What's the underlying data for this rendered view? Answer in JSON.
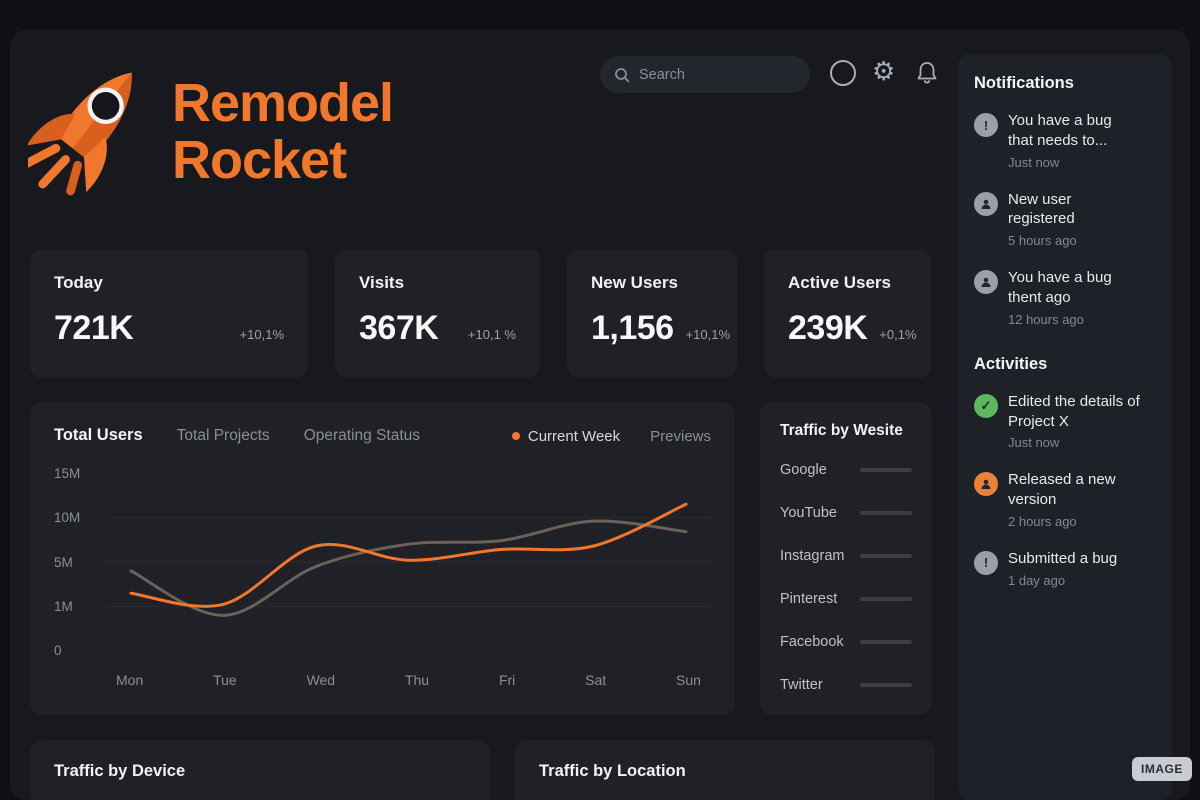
{
  "brand": {
    "line1": "Remodel",
    "line2": "Rocket"
  },
  "header": {
    "search_placeholder": "Search",
    "settings_glyph": "⚙"
  },
  "stats": [
    {
      "label": "Today",
      "value": "721K",
      "delta": "+10,1%"
    },
    {
      "label": "Visits",
      "value": "367K",
      "delta": "+10,1 %"
    },
    {
      "label": "New Users",
      "value": "1,156",
      "delta": "+10,1%"
    },
    {
      "label": "Active Users",
      "value": "239K",
      "delta": "+0,1%"
    }
  ],
  "chart": {
    "tabs": [
      "Total Users",
      "Total Projects",
      "Operating Status"
    ],
    "legend": [
      {
        "label": "Current Week",
        "color": "#f0772b"
      },
      {
        "label": "Previews",
        "color": "#6b6159"
      }
    ]
  },
  "chart_data": {
    "type": "line",
    "title": "Total Users",
    "x": [
      "Mon",
      "Tue",
      "Wed",
      "Thu",
      "Fri",
      "Sat",
      "Sun"
    ],
    "y_ticks": [
      "15M",
      "10M",
      "5M",
      "1M",
      "0"
    ],
    "y_tick_values": [
      15,
      10,
      5,
      1,
      0
    ],
    "ylim": [
      0,
      15
    ],
    "unit": "M users",
    "legend_position": "top-right",
    "grid": true,
    "series": [
      {
        "name": "Current Week",
        "color": "#f0772b",
        "values": [
          2.2,
          1.2,
          6.8,
          5.2,
          6.4,
          6.8,
          11.5
        ]
      },
      {
        "name": "Previews",
        "color": "#6b6159",
        "values": [
          4.2,
          0.8,
          4.6,
          7.0,
          7.4,
          9.6,
          8.4
        ]
      }
    ]
  },
  "traffic_by_website": {
    "title": "Traffic by Wesite",
    "items": [
      "Google",
      "YouTube",
      "Instagram",
      "Pinterest",
      "Facebook",
      "Twitter"
    ]
  },
  "notifications": {
    "title": "Notifications",
    "items": [
      {
        "icon": "alert-icon",
        "text": "You have a bug that needs to...",
        "time": "Just now"
      },
      {
        "icon": "user-icon",
        "text": "New user registered",
        "time": "5 hours ago"
      },
      {
        "icon": "user-icon",
        "text": "You have a bug thent ago",
        "time": "12 hours ago"
      }
    ]
  },
  "activities": {
    "title": "Activities",
    "items": [
      {
        "icon": "check-icon",
        "color": "#5cb85f",
        "text": "Edited the details of Project X",
        "time": "Just now"
      },
      {
        "icon": "user-icon",
        "color": "#e8813a",
        "text": "Released a new version",
        "time": "2 hours ago"
      },
      {
        "icon": "alert-icon",
        "color": "#9ba0a8",
        "text": "Submitted a bug",
        "time": "1 day ago"
      }
    ]
  },
  "bottom_cards": {
    "device_title": "Traffic by Device",
    "location_title": "Traffic by Location"
  },
  "badge": {
    "label": "IMAGE"
  },
  "colors": {
    "accent": "#f0772b",
    "background": "#17191e",
    "card": "#1f2127"
  }
}
